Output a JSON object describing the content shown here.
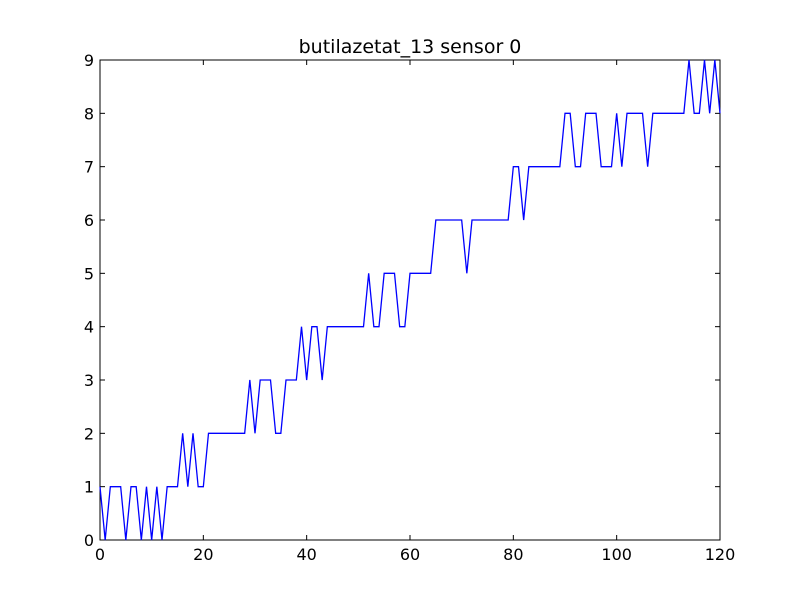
{
  "chart_data": {
    "type": "line",
    "title": "butilazetat_13 sensor 0",
    "xlabel": "",
    "ylabel": "",
    "xlim": [
      0,
      120
    ],
    "ylim": [
      0,
      9
    ],
    "xticks": [
      0,
      20,
      40,
      60,
      80,
      100,
      120
    ],
    "yticks": [
      0,
      1,
      2,
      3,
      4,
      5,
      6,
      7,
      8,
      9
    ],
    "grid": false,
    "line_color": "#0000ff",
    "series": [
      {
        "x": [
          0,
          1,
          2,
          3,
          4,
          5,
          6,
          7,
          8,
          9,
          10,
          11,
          12,
          13,
          14,
          15,
          16,
          17,
          18,
          19,
          20,
          21,
          22,
          23,
          24,
          25,
          26,
          27,
          28,
          29,
          30,
          31,
          32,
          33,
          34,
          35,
          36,
          37,
          38,
          39,
          40,
          41,
          42,
          43,
          44,
          45,
          46,
          47,
          48,
          49,
          50,
          51,
          52,
          53,
          54,
          55,
          56,
          57,
          58,
          59,
          60,
          61,
          62,
          63,
          64,
          65,
          66,
          67,
          68,
          69,
          70,
          71,
          72,
          73,
          74,
          75,
          76,
          77,
          78,
          79,
          80,
          81,
          82,
          83,
          84,
          85,
          86,
          87,
          88,
          89,
          90,
          91,
          92,
          93,
          94,
          95,
          96,
          97,
          98,
          99,
          100,
          101,
          102,
          103,
          104,
          105,
          106,
          107,
          108,
          109,
          110,
          111,
          112,
          113,
          114,
          115,
          116,
          117,
          118,
          119,
          120
        ],
        "y": [
          1,
          0,
          1,
          1,
          1,
          0,
          1,
          1,
          0,
          1,
          0,
          1,
          0,
          1,
          1,
          1,
          2,
          1,
          2,
          1,
          1,
          2,
          2,
          2,
          2,
          2,
          2,
          2,
          2,
          3,
          2,
          3,
          3,
          3,
          2,
          2,
          3,
          3,
          3,
          4,
          3,
          4,
          4,
          3,
          4,
          4,
          4,
          4,
          4,
          4,
          4,
          4,
          5,
          4,
          4,
          5,
          5,
          5,
          4,
          4,
          5,
          5,
          5,
          5,
          5,
          6,
          6,
          6,
          6,
          6,
          6,
          5,
          6,
          6,
          6,
          6,
          6,
          6,
          6,
          6,
          7,
          7,
          6,
          7,
          7,
          7,
          7,
          7,
          7,
          7,
          8,
          8,
          7,
          7,
          8,
          8,
          8,
          7,
          7,
          7,
          8,
          7,
          8,
          8,
          8,
          8,
          7,
          8,
          8,
          8,
          8,
          8,
          8,
          8,
          9,
          8,
          8,
          9,
          8,
          9,
          8
        ]
      }
    ]
  }
}
